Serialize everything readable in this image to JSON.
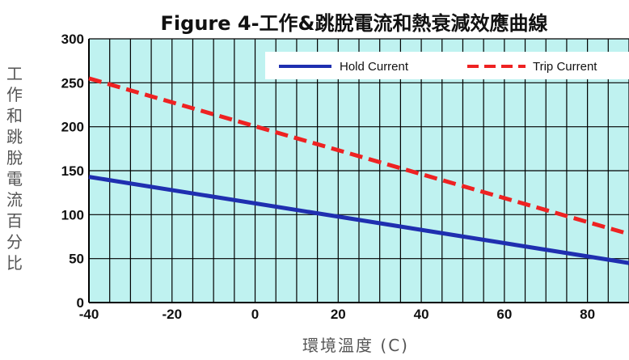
{
  "chart_data": {
    "type": "line",
    "title": "Figure 4-工作&跳脫電流和熱衰減效應曲線",
    "xlabel": "環境溫度 (C)",
    "ylabel": "工作和跳脫電流百分比",
    "xlim": [
      -40,
      90
    ],
    "ylim": [
      0,
      300
    ],
    "x_ticks": [
      "-40",
      "-20",
      "0",
      "20",
      "40",
      "60",
      "80"
    ],
    "y_ticks": [
      "0",
      "50",
      "100",
      "150",
      "200",
      "250",
      "300"
    ],
    "grid": true,
    "legend_position": "top-right",
    "series": [
      {
        "name": "Hold Current",
        "color": "#1f2fb0",
        "style": "solid",
        "x": [
          -40,
          90
        ],
        "y": [
          143,
          45
        ]
      },
      {
        "name": "Trip Current",
        "color": "#ee2222",
        "style": "dashed",
        "x": [
          -40,
          90
        ],
        "y": [
          255,
          78
        ]
      }
    ]
  }
}
